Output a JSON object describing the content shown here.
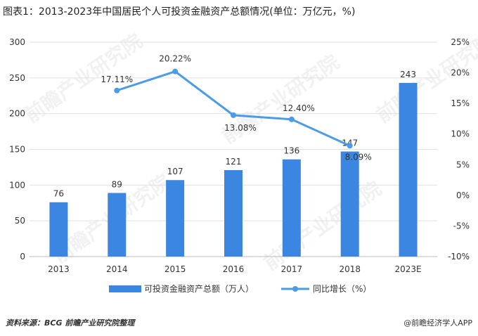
{
  "header": {
    "title": "图表1：2013-2023年中国居民个人可投资金融资产总额情况(单位：万亿元，%)"
  },
  "footer": {
    "source": "资料来源：BCG 前瞻产业研究院整理",
    "brand": "@前瞻经济学人APP"
  },
  "watermark": "前瞻产业研究院",
  "colors": {
    "bar": "#3b86e0",
    "line": "#4a9be8",
    "grid": "#e0e0e0",
    "axis": "#999999"
  },
  "chart_data": {
    "type": "bar+line",
    "categories": [
      "2013",
      "2014",
      "2015",
      "2016",
      "2017",
      "2018",
      "2023E"
    ],
    "series": [
      {
        "name": "可投资金融资产总额（万人）",
        "type": "bar",
        "axis": "left",
        "values": [
          76,
          89,
          107,
          121,
          136,
          147,
          243
        ],
        "labels": [
          "76",
          "89",
          "107",
          "121",
          "136",
          "147",
          "243"
        ]
      },
      {
        "name": "同比增长（%）",
        "type": "line",
        "axis": "right",
        "values": [
          null,
          17.11,
          20.22,
          13.08,
          12.4,
          8.09,
          null
        ],
        "labels": [
          "",
          "17.11%",
          "20.22%",
          "13.08%",
          "12.40%",
          "8.09%",
          ""
        ]
      }
    ],
    "y_left": {
      "lim": [
        0,
        300
      ],
      "ticks": [
        "0",
        "50",
        "100",
        "150",
        "200",
        "250",
        "300"
      ]
    },
    "y_right": {
      "lim": [
        -10,
        25
      ],
      "ticks": [
        "-10%",
        "-5%",
        "0%",
        "5%",
        "10%",
        "15%",
        "20%",
        "25%"
      ]
    },
    "grid": true,
    "legend": "bottom"
  }
}
